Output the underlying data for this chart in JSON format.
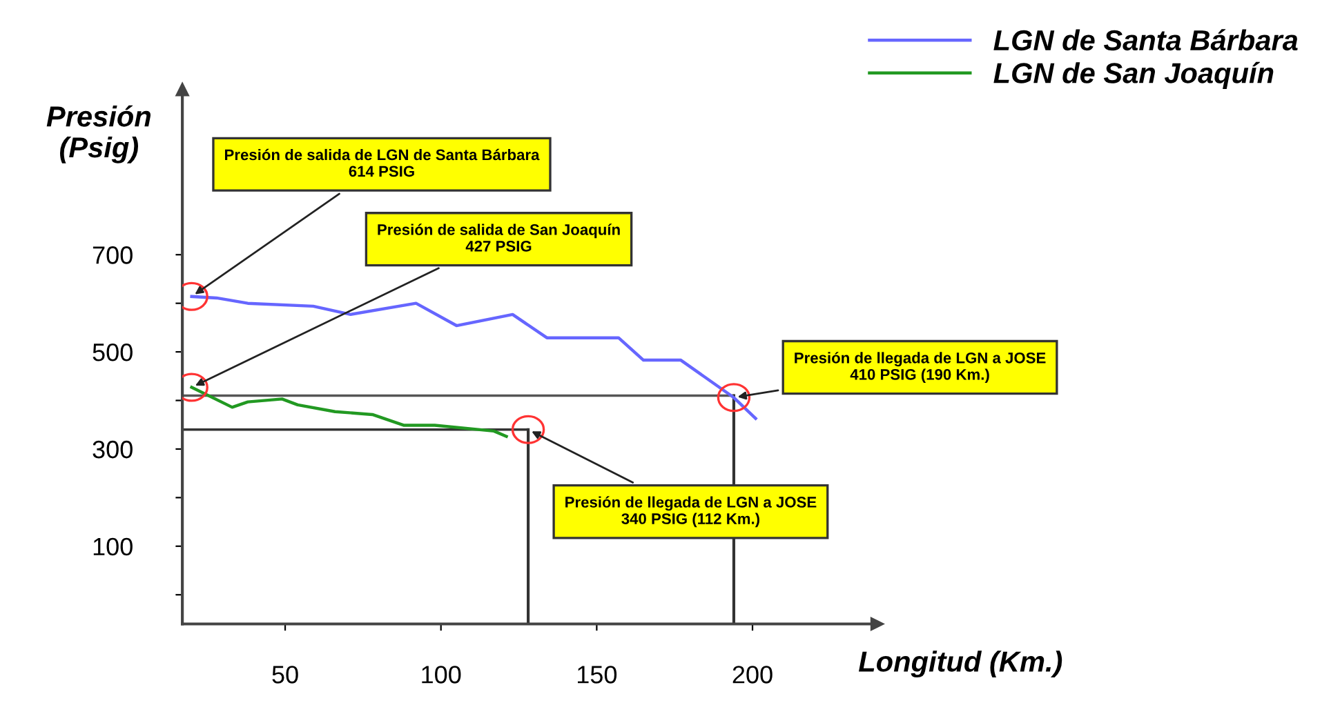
{
  "chart_data": {
    "type": "line",
    "xlabel": "Longitud (Km.)",
    "ylabel": "Presión\n(Psig)",
    "xlim": [
      17,
      240
    ],
    "ylim": [
      -60,
      1040
    ],
    "xticks": [
      50,
      100,
      150,
      200
    ],
    "yticks": [
      {
        "value": 0,
        "label": null
      },
      100,
      {
        "value": 200,
        "label": null
      },
      300,
      {
        "value": 400,
        "label": null
      },
      500,
      {
        "value": 600,
        "label": null
      },
      700
    ],
    "grid": false,
    "legend": "top right",
    "marker": "none",
    "line_style": "solid",
    "series": [
      {
        "name": "LGN de Santa Bárbara",
        "color": "#6666ff",
        "x": [
          20,
          28,
          38,
          59,
          71,
          92,
          105,
          123,
          134,
          157,
          165,
          177,
          194,
          201
        ],
        "values": [
          614,
          611,
          600,
          594,
          577,
          600,
          554,
          577,
          529,
          529,
          483,
          483,
          406,
          363
        ]
      },
      {
        "name": "LGN de San Joaquín",
        "color": "#229922",
        "x": [
          20,
          33,
          38,
          49,
          54,
          66,
          78,
          88,
          98,
          117,
          121
        ],
        "values": [
          427,
          386,
          397,
          403,
          391,
          377,
          371,
          349,
          349,
          337,
          326
        ]
      }
    ],
    "ref_lines": [
      {
        "axis": "y",
        "value": 410,
        "color": "#555555"
      },
      {
        "axis": "x",
        "value": 194,
        "color": "#333333"
      },
      {
        "axis": "y",
        "value": 340,
        "color": "#333333"
      },
      {
        "axis": "x",
        "value": 128,
        "color": "#333333"
      }
    ],
    "annotations": [
      {
        "text": "Presión de salida de LGN de Santa Bárbara\n614 PSIG",
        "x": 20,
        "y": 614
      },
      {
        "text": "Presión de salida de San Joaquín\n427 PSIG",
        "x": 20,
        "y": 427
      },
      {
        "text": "Presión de llegada de LGN a JOSE\n410 PSIG (190 Km.)",
        "x": 194,
        "y": 406
      },
      {
        "text": "Presión de llegada de LGN a JOSE\n340 PSIG (112 Km.)",
        "x": 128,
        "y": 340
      }
    ]
  }
}
